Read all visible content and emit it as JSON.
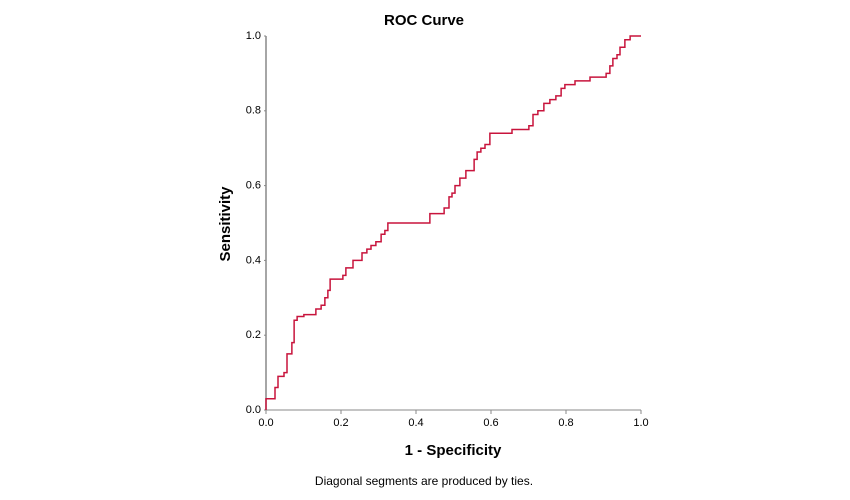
{
  "chart_data": {
    "type": "line",
    "title": "ROC Curve",
    "xlabel": "1 - Specificity",
    "ylabel": "Sensitivity",
    "footnote": "Diagonal segments are produced by ties.",
    "x": [
      0,
      0,
      0.024,
      0.024,
      0.032,
      0.032,
      0.048,
      0.048,
      0.056,
      0.056,
      0.069,
      0.069,
      0.075,
      0.075,
      0.083,
      0.083,
      0.101,
      0.101,
      0.133,
      0.133,
      0.147,
      0.147,
      0.157,
      0.157,
      0.165,
      0.165,
      0.171,
      0.171,
      0.205,
      0.205,
      0.213,
      0.213,
      0.232,
      0.232,
      0.256,
      0.256,
      0.269,
      0.269,
      0.28,
      0.28,
      0.293,
      0.293,
      0.307,
      0.307,
      0.317,
      0.317,
      0.325,
      0.325,
      0.437,
      0.437,
      0.475,
      0.475,
      0.488,
      0.488,
      0.496,
      0.496,
      0.504,
      0.504,
      0.517,
      0.517,
      0.533,
      0.533,
      0.555,
      0.555,
      0.563,
      0.563,
      0.573,
      0.573,
      0.584,
      0.584,
      0.597,
      0.597,
      0.656,
      0.656,
      0.701,
      0.701,
      0.712,
      0.712,
      0.725,
      0.725,
      0.741,
      0.741,
      0.757,
      0.757,
      0.773,
      0.773,
      0.787,
      0.787,
      0.797,
      0.797,
      0.824,
      0.824,
      0.864,
      0.864,
      0.907,
      0.907,
      0.917,
      0.917,
      0.925,
      0.925,
      0.936,
      0.936,
      0.944,
      0.944,
      0.957,
      0.957,
      0.971,
      0.971,
      1
    ],
    "series": [
      {
        "color": "#c8143c",
        "values": [
          0,
          0.03,
          0.03,
          0.06,
          0.06,
          0.09,
          0.09,
          0.1,
          0.1,
          0.15,
          0.15,
          0.18,
          0.18,
          0.24,
          0.24,
          0.25,
          0.25,
          0.255,
          0.255,
          0.27,
          0.27,
          0.28,
          0.28,
          0.3,
          0.3,
          0.32,
          0.32,
          0.35,
          0.35,
          0.36,
          0.36,
          0.38,
          0.38,
          0.4,
          0.4,
          0.42,
          0.42,
          0.43,
          0.43,
          0.44,
          0.44,
          0.45,
          0.45,
          0.47,
          0.47,
          0.48,
          0.48,
          0.5,
          0.5,
          0.525,
          0.525,
          0.54,
          0.54,
          0.57,
          0.57,
          0.58,
          0.58,
          0.6,
          0.6,
          0.62,
          0.62,
          0.64,
          0.64,
          0.67,
          0.67,
          0.69,
          0.69,
          0.7,
          0.7,
          0.71,
          0.71,
          0.74,
          0.74,
          0.75,
          0.75,
          0.76,
          0.76,
          0.79,
          0.79,
          0.8,
          0.8,
          0.82,
          0.82,
          0.83,
          0.83,
          0.84,
          0.84,
          0.86,
          0.86,
          0.87,
          0.87,
          0.88,
          0.88,
          0.89,
          0.89,
          0.9,
          0.9,
          0.92,
          0.92,
          0.94,
          0.94,
          0.95,
          0.95,
          0.97,
          0.97,
          0.99,
          0.99,
          1.0,
          1.0
        ]
      }
    ],
    "xlim": [
      0,
      1
    ],
    "ylim": [
      0,
      1
    ],
    "xticks": [
      {
        "value": 0,
        "label": "0.0"
      },
      {
        "value": 0.2,
        "label": "0.2"
      },
      {
        "value": 0.4,
        "label": "0.4"
      },
      {
        "value": 0.6,
        "label": "0.6"
      },
      {
        "value": 0.8,
        "label": "0.8"
      },
      {
        "value": 1,
        "label": "1.0"
      }
    ],
    "yticks": [
      {
        "value": 0,
        "label": "0.0"
      },
      {
        "value": 0.2,
        "label": "0.2"
      },
      {
        "value": 0.4,
        "label": "0.4"
      },
      {
        "value": 0.6,
        "label": "0.6"
      },
      {
        "value": 0.8,
        "label": "0.8"
      },
      {
        "value": 1,
        "label": "1.0"
      }
    ],
    "grid": false
  }
}
